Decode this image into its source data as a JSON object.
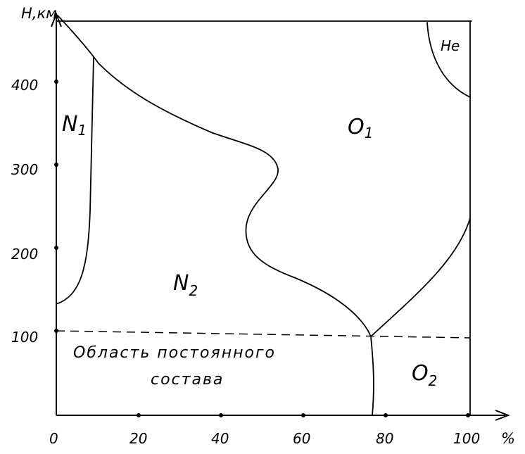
{
  "axes": {
    "y_label": "H,км",
    "x_label": "%",
    "y_ticks": [
      "100",
      "200",
      "300",
      "400"
    ],
    "x_ticks": [
      "0",
      "20",
      "40",
      "60",
      "80",
      "100"
    ]
  },
  "regions": {
    "n1": {
      "main": "N",
      "sub": "1"
    },
    "n2": {
      "main": "N",
      "sub": "2"
    },
    "o1": {
      "main": "O",
      "sub": "1"
    },
    "o2": {
      "main": "O",
      "sub": "2"
    },
    "he": "He"
  },
  "note": {
    "line1": "Область постоянного",
    "line2": "состава"
  }
}
